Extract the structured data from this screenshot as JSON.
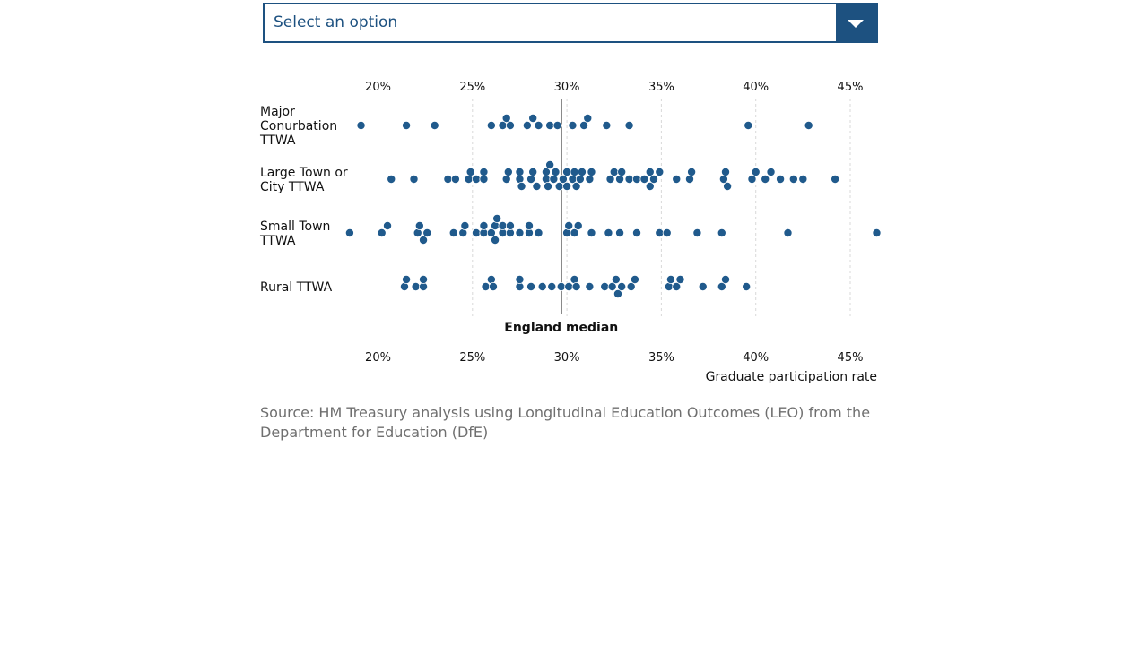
{
  "select": {
    "placeholder": "Select an option",
    "icon": "chevron-down-icon"
  },
  "source_text": "Source: HM Treasury analysis using Longitudinal Education Outcomes (LEO) from the Department for Education (DfE)",
  "colors": {
    "dot": "#205a8c",
    "accent": "#1d5180",
    "median": "#222222",
    "grid": "#d8d8d8"
  },
  "chart_data": {
    "type": "scatter",
    "xlabel": "Graduate participation rate",
    "x_ticks": [
      "20%",
      "25%",
      "30%",
      "35%",
      "40%",
      "45%"
    ],
    "x_tick_values": [
      20,
      25,
      30,
      35,
      40,
      45
    ],
    "xlim": [
      18,
      46.5
    ],
    "median": {
      "label": "England median",
      "value": 29.7
    },
    "grid": true,
    "categories": [
      {
        "label": [
          "Major",
          "Conurbation",
          "TTWA"
        ]
      },
      {
        "label": [
          "Large Town or",
          "City TTWA"
        ]
      },
      {
        "label": [
          "Small Town",
          "TTWA"
        ]
      },
      {
        "label": [
          "Rural TTWA"
        ]
      }
    ],
    "series": [
      {
        "category": "Major Conurbation TTWA",
        "values": [
          19.1,
          21.5,
          23.0,
          26.0,
          26.6,
          26.8,
          27.0,
          27.9,
          28.2,
          28.5,
          29.1,
          29.5,
          30.3,
          30.9,
          31.1,
          32.1,
          33.3,
          39.6,
          42.8
        ]
      },
      {
        "category": "Large Town or City TTWA",
        "values": [
          20.7,
          21.9,
          23.7,
          24.1,
          24.8,
          24.9,
          25.2,
          25.6,
          25.6,
          26.8,
          26.9,
          27.5,
          27.5,
          27.6,
          28.1,
          28.2,
          28.4,
          28.9,
          28.9,
          29.0,
          29.1,
          29.3,
          29.4,
          29.6,
          29.8,
          30.0,
          30.0,
          30.3,
          30.4,
          30.5,
          30.7,
          30.8,
          31.2,
          31.3,
          32.3,
          32.5,
          32.8,
          32.9,
          33.3,
          33.7,
          34.1,
          34.4,
          34.4,
          34.6,
          34.9,
          35.8,
          36.5,
          36.6,
          38.3,
          38.4,
          38.5,
          39.8,
          40.0,
          40.5,
          40.8,
          41.3,
          42.0,
          42.5,
          44.2
        ]
      },
      {
        "category": "Small Town TTWA",
        "values": [
          18.5,
          20.2,
          20.5,
          22.1,
          22.2,
          22.4,
          22.6,
          24.0,
          24.5,
          24.6,
          25.2,
          25.6,
          25.6,
          26.0,
          26.2,
          26.2,
          26.3,
          26.6,
          26.6,
          27.0,
          27.0,
          27.5,
          28.0,
          28.0,
          28.5,
          30.0,
          30.1,
          30.4,
          30.6,
          31.3,
          32.2,
          32.8,
          33.7,
          34.9,
          35.3,
          36.9,
          38.2,
          41.7,
          46.4
        ]
      },
      {
        "category": "Rural TTWA",
        "values": [
          21.4,
          21.5,
          22.0,
          22.4,
          22.4,
          25.7,
          26.0,
          26.1,
          27.5,
          27.5,
          28.1,
          28.7,
          29.2,
          29.7,
          30.1,
          30.4,
          30.5,
          31.2,
          32.0,
          32.4,
          32.6,
          32.7,
          32.9,
          33.4,
          33.6,
          35.4,
          35.5,
          35.8,
          36.0,
          37.2,
          38.2,
          38.4,
          39.5
        ]
      }
    ]
  }
}
